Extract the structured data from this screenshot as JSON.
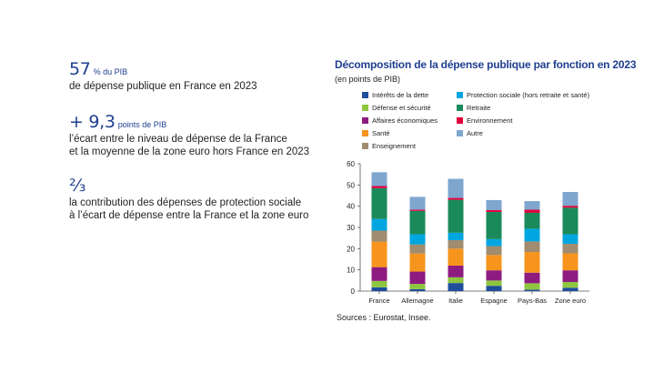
{
  "stats": [
    {
      "value": "57",
      "unit": "% du PIB",
      "description": "de dépense publique en France en 2023"
    },
    {
      "value": "+ 9,3",
      "unit": "points de PIB",
      "description": "l’écart entre le niveau de dépense de la France\net la moyenne de la zone euro hors France en 2023"
    },
    {
      "value": "⅔",
      "unit": "",
      "description": "la contribution des dépenses de protection sociale\nà l’écart de dépense entre la France et la zone euro"
    }
  ],
  "source": "Sources : Eurostat, Insee.",
  "chart_data": {
    "type": "bar",
    "stacked": true,
    "title": "Décomposition de la dépense publique par fonction en 2023",
    "subtitle": "(en points de PIB)",
    "categories": [
      "France",
      "Allemagne",
      "Italie",
      "Espagne",
      "Pays-Bas",
      "Zone euro"
    ],
    "ylim": [
      0,
      60
    ],
    "yticks": [
      0,
      10,
      20,
      30,
      40,
      50,
      60
    ],
    "grid": false,
    "legend_position": "top",
    "series": [
      {
        "name": "Intérêts de la dette",
        "color": "#1f4e9c",
        "values": [
          1.8,
          0.9,
          3.8,
          2.5,
          0.7,
          1.6
        ]
      },
      {
        "name": "Défense et sécurité",
        "color": "#8dc63f",
        "values": [
          3.0,
          2.5,
          2.7,
          2.5,
          3.0,
          2.7
        ]
      },
      {
        "name": "Affaires économiques",
        "color": "#8e1b7f",
        "values": [
          6.5,
          5.8,
          5.5,
          4.8,
          5.0,
          5.5
        ]
      },
      {
        "name": "Santé",
        "color": "#f7941d",
        "values": [
          12.0,
          8.5,
          8.0,
          7.2,
          9.7,
          8.0
        ]
      },
      {
        "name": "Enseignement",
        "color": "#a08c6e",
        "values": [
          5.2,
          4.3,
          4.0,
          4.2,
          5.0,
          4.5
        ]
      },
      {
        "name": "Protection sociale (hors retraite et santé)",
        "color": "#00a6e0",
        "values": [
          5.5,
          4.8,
          3.5,
          3.3,
          6.0,
          4.5
        ]
      },
      {
        "name": "Retraite",
        "color": "#1a8a5a",
        "values": [
          14.5,
          11.0,
          15.5,
          12.8,
          7.5,
          12.5
        ]
      },
      {
        "name": "Environnement",
        "color": "#e0003c",
        "values": [
          1.0,
          0.6,
          0.9,
          0.9,
          1.5,
          0.9
        ]
      },
      {
        "name": "Autre",
        "color": "#7ea6cf",
        "values": [
          6.5,
          6.0,
          9.0,
          4.7,
          4.0,
          6.5
        ]
      }
    ]
  }
}
